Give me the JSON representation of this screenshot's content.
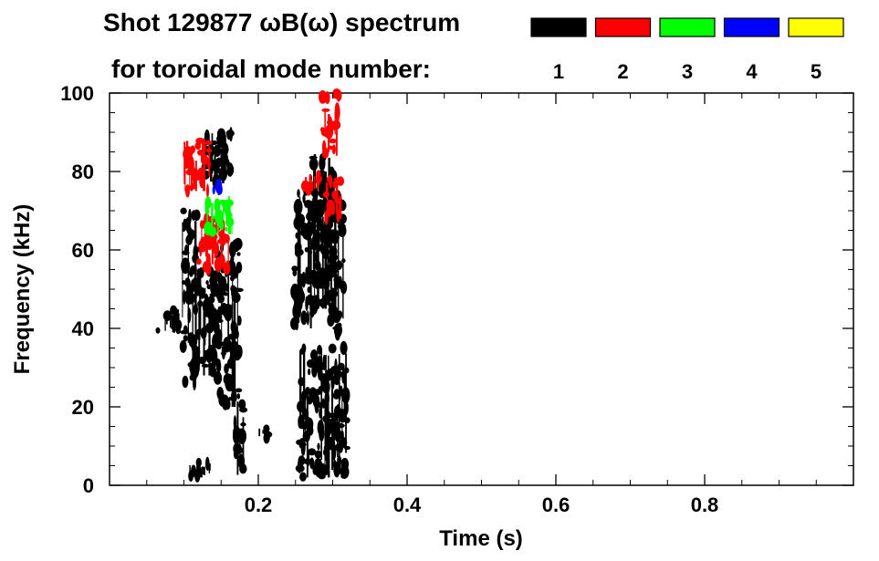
{
  "chart_data": {
    "type": "heatmap",
    "title": "Shot 129877 ωB(ω) spectrum",
    "legend_label": "for toroidal mode number:",
    "legend_placement": "top-right",
    "xlabel": "Time (s)",
    "ylabel": "Frequency (kHz)",
    "xlim": [
      0,
      1.0
    ],
    "ylim": [
      0,
      100
    ],
    "xticks": [
      0.2,
      0.4,
      0.6,
      0.8
    ],
    "yticks": [
      0,
      20,
      40,
      60,
      80,
      100
    ],
    "grid": false,
    "modes": [
      {
        "n": "1",
        "color": "#000000"
      },
      {
        "n": "2",
        "color": "#ff0000"
      },
      {
        "n": "3",
        "color": "#00ff00"
      },
      {
        "n": "4",
        "color": "#0000ff"
      },
      {
        "n": "5",
        "color": "#ffff00"
      }
    ],
    "regions": [
      {
        "mode": "1",
        "t": [
          0.065,
          0.095
        ],
        "f": [
          39,
          45
        ]
      },
      {
        "mode": "1",
        "t": [
          0.098,
          0.118
        ],
        "f": [
          25,
          70
        ]
      },
      {
        "mode": "1",
        "t": [
          0.118,
          0.145
        ],
        "f": [
          28,
          55
        ]
      },
      {
        "mode": "1",
        "t": [
          0.145,
          0.175
        ],
        "f": [
          20,
          62
        ]
      },
      {
        "mode": "1",
        "t": [
          0.128,
          0.165
        ],
        "f": [
          77,
          90
        ]
      },
      {
        "mode": "1",
        "t": [
          0.168,
          0.18
        ],
        "f": [
          2,
          25
        ]
      },
      {
        "mode": "1",
        "t": [
          0.105,
          0.135
        ],
        "f": [
          2,
          6
        ]
      },
      {
        "mode": "1",
        "t": [
          0.195,
          0.215
        ],
        "f": [
          12,
          15
        ]
      },
      {
        "mode": "1",
        "t": [
          0.248,
          0.275
        ],
        "f": [
          40,
          75
        ]
      },
      {
        "mode": "1",
        "t": [
          0.27,
          0.305
        ],
        "f": [
          45,
          85
        ]
      },
      {
        "mode": "1",
        "t": [
          0.295,
          0.315
        ],
        "f": [
          38,
          75
        ]
      },
      {
        "mode": "1",
        "t": [
          0.255,
          0.32
        ],
        "f": [
          2,
          35
        ]
      },
      {
        "mode": "2",
        "t": [
          0.1,
          0.135
        ],
        "f": [
          75,
          88
        ]
      },
      {
        "mode": "2",
        "t": [
          0.12,
          0.16
        ],
        "f": [
          55,
          68
        ]
      },
      {
        "mode": "2",
        "t": [
          0.285,
          0.31
        ],
        "f": [
          84,
          100
        ]
      },
      {
        "mode": "2",
        "t": [
          0.29,
          0.312
        ],
        "f": [
          68,
          78
        ]
      },
      {
        "mode": "2",
        "t": [
          0.262,
          0.282
        ],
        "f": [
          75,
          80
        ]
      },
      {
        "mode": "3",
        "t": [
          0.13,
          0.165
        ],
        "f": [
          64,
          74
        ]
      },
      {
        "mode": "4",
        "t": [
          0.14,
          0.15
        ],
        "f": [
          74,
          78
        ]
      }
    ]
  }
}
